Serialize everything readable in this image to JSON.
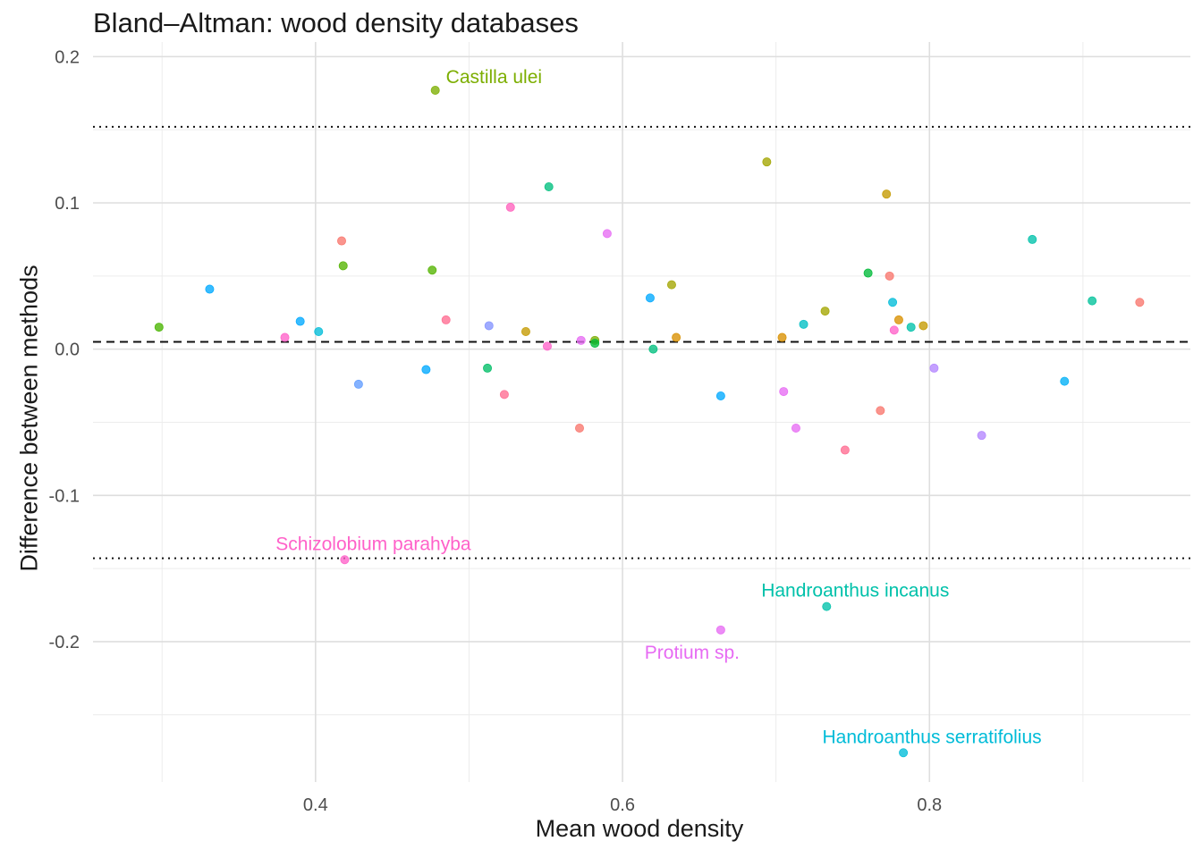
{
  "chart_data": {
    "type": "scatter",
    "title": "Bland–Altman: wood density databases",
    "xlabel": "Mean wood density",
    "ylabel": "Difference between methods",
    "xlim": [
      0.255,
      0.97
    ],
    "ylim": [
      -0.296,
      0.21
    ],
    "x_ticks": [
      {
        "v": 0.4,
        "label": "0.4"
      },
      {
        "v": 0.6,
        "label": "0.6"
      },
      {
        "v": 0.8,
        "label": "0.8"
      }
    ],
    "y_ticks": [
      {
        "v": 0.2,
        "label": "0.2"
      },
      {
        "v": 0.1,
        "label": "0.1"
      },
      {
        "v": 0.0,
        "label": "0.0"
      },
      {
        "v": -0.1,
        "label": "-0.1"
      },
      {
        "v": -0.2,
        "label": "-0.2"
      }
    ],
    "grid": true,
    "reference_lines": [
      {
        "kind": "mean_difference",
        "y": 0.005,
        "style": "dashed"
      },
      {
        "kind": "upper_limit_of_agreement",
        "y": 0.152,
        "style": "dotted"
      },
      {
        "kind": "lower_limit_of_agreement",
        "y": -0.143,
        "style": "dotted"
      }
    ],
    "points": [
      {
        "x": 0.298,
        "y": 0.015,
        "color": "#49B500"
      },
      {
        "x": 0.331,
        "y": 0.041,
        "color": "#00A9FF"
      },
      {
        "x": 0.38,
        "y": 0.008,
        "color": "#FF61C9"
      },
      {
        "x": 0.39,
        "y": 0.019,
        "color": "#00A9FF"
      },
      {
        "x": 0.402,
        "y": 0.012,
        "color": "#00BCD8"
      },
      {
        "x": 0.417,
        "y": 0.074,
        "color": "#F8766D"
      },
      {
        "x": 0.418,
        "y": 0.057,
        "color": "#53B400"
      },
      {
        "x": 0.419,
        "y": -0.144,
        "color": "#FF61C9",
        "label": "Schizolobium parahyba"
      },
      {
        "x": 0.428,
        "y": -0.024,
        "color": "#619CFF"
      },
      {
        "x": 0.472,
        "y": -0.014,
        "color": "#00A9FF"
      },
      {
        "x": 0.476,
        "y": 0.054,
        "color": "#53B400"
      },
      {
        "x": 0.478,
        "y": 0.177,
        "color": "#7CAE00",
        "label": "Castilla ulei"
      },
      {
        "x": 0.485,
        "y": 0.02,
        "color": "#FF6C91"
      },
      {
        "x": 0.512,
        "y": -0.013,
        "color": "#00BE67"
      },
      {
        "x": 0.513,
        "y": 0.016,
        "color": "#8494FF"
      },
      {
        "x": 0.523,
        "y": -0.031,
        "color": "#FF6C91"
      },
      {
        "x": 0.527,
        "y": 0.097,
        "color": "#FF62BC"
      },
      {
        "x": 0.537,
        "y": 0.012,
        "color": "#C49A00"
      },
      {
        "x": 0.551,
        "y": 0.002,
        "color": "#FF61C9"
      },
      {
        "x": 0.552,
        "y": 0.111,
        "color": "#00BF7D"
      },
      {
        "x": 0.572,
        "y": -0.054,
        "color": "#F8766D"
      },
      {
        "x": 0.573,
        "y": 0.006,
        "color": "#E76BF3"
      },
      {
        "x": 0.582,
        "y": 0.006,
        "color": "#7CAE00"
      },
      {
        "x": 0.582,
        "y": 0.004,
        "color": "#00BA38"
      },
      {
        "x": 0.59,
        "y": 0.079,
        "color": "#E76BF3"
      },
      {
        "x": 0.618,
        "y": 0.035,
        "color": "#00A9FF"
      },
      {
        "x": 0.62,
        "y": 0.0,
        "color": "#00BF7D"
      },
      {
        "x": 0.632,
        "y": 0.044,
        "color": "#A3A500"
      },
      {
        "x": 0.635,
        "y": 0.008,
        "color": "#D89000"
      },
      {
        "x": 0.664,
        "y": -0.032,
        "color": "#00A9FF"
      },
      {
        "x": 0.664,
        "y": -0.192,
        "color": "#E76BF3",
        "label": "Protium sp."
      },
      {
        "x": 0.694,
        "y": 0.128,
        "color": "#A3A500"
      },
      {
        "x": 0.704,
        "y": 0.008,
        "color": "#D89000"
      },
      {
        "x": 0.705,
        "y": -0.029,
        "color": "#E76BF3"
      },
      {
        "x": 0.713,
        "y": -0.054,
        "color": "#E76BF3"
      },
      {
        "x": 0.718,
        "y": 0.017,
        "color": "#00BFC4"
      },
      {
        "x": 0.732,
        "y": 0.026,
        "color": "#A3A500"
      },
      {
        "x": 0.733,
        "y": -0.176,
        "color": "#00C1AA",
        "label": "Handroanthus incanus"
      },
      {
        "x": 0.745,
        "y": -0.069,
        "color": "#FF6C91"
      },
      {
        "x": 0.76,
        "y": 0.052,
        "color": "#00BA38"
      },
      {
        "x": 0.768,
        "y": -0.042,
        "color": "#F8766D"
      },
      {
        "x": 0.772,
        "y": 0.106,
        "color": "#C49A00"
      },
      {
        "x": 0.774,
        "y": 0.05,
        "color": "#F8766D"
      },
      {
        "x": 0.776,
        "y": 0.032,
        "color": "#00BCD8"
      },
      {
        "x": 0.777,
        "y": 0.013,
        "color": "#FF61C9"
      },
      {
        "x": 0.78,
        "y": 0.02,
        "color": "#D89000"
      },
      {
        "x": 0.783,
        "y": -0.276,
        "color": "#00BCD8",
        "label": "Handroanthus serratifolius"
      },
      {
        "x": 0.788,
        "y": 0.015,
        "color": "#00C1AA"
      },
      {
        "x": 0.796,
        "y": 0.016,
        "color": "#C49A00"
      },
      {
        "x": 0.803,
        "y": -0.013,
        "color": "#B385FF"
      },
      {
        "x": 0.834,
        "y": -0.059,
        "color": "#B385FF"
      },
      {
        "x": 0.867,
        "y": 0.075,
        "color": "#00C1AA"
      },
      {
        "x": 0.888,
        "y": -0.022,
        "color": "#00B0F6"
      },
      {
        "x": 0.906,
        "y": 0.033,
        "color": "#00C19A"
      },
      {
        "x": 0.937,
        "y": 0.032,
        "color": "#F8766D"
      }
    ]
  }
}
